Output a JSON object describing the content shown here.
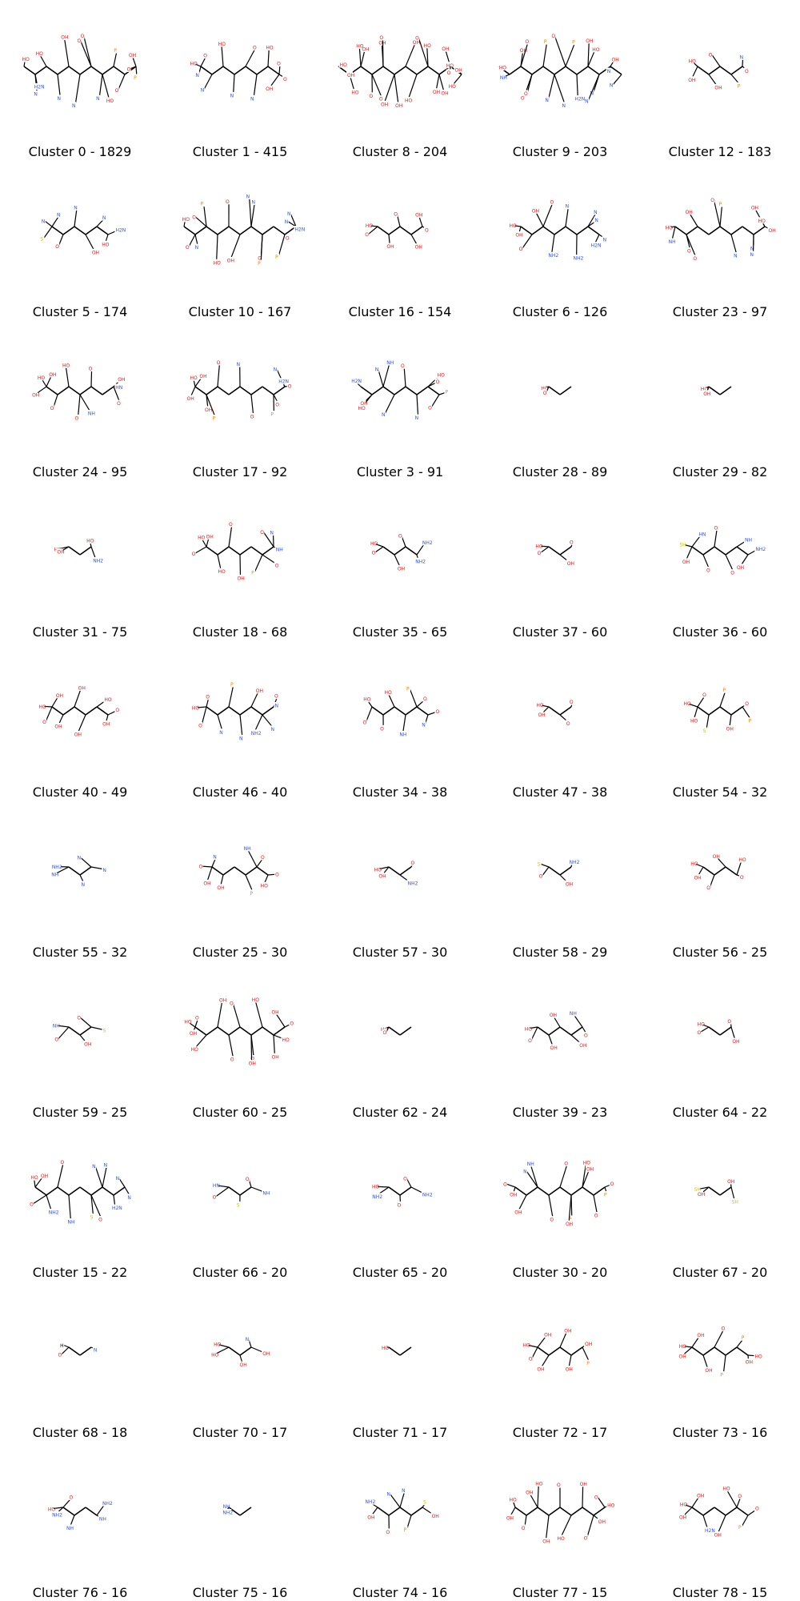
{
  "figure": {
    "clusters": [
      {
        "label": "Cluster 0 - 1829",
        "atoms": [
          "HO",
          "HO",
          "OH",
          "O",
          "O",
          "P",
          "OH",
          "O",
          "P",
          "O",
          "HO",
          "N",
          "N",
          "N",
          "N",
          "H2N"
        ]
      },
      {
        "label": "Cluster 1 - 415",
        "atoms": [
          "HO",
          "O",
          "HO",
          "O",
          "HO",
          "O",
          "O",
          "OH",
          "N",
          "N",
          "N",
          "N"
        ]
      },
      {
        "label": "Cluster 8 - 204",
        "atoms": [
          "HO",
          "OH",
          "HO",
          "OH",
          "O",
          "OH",
          "O",
          "HO",
          "OH",
          "HO",
          "OH",
          "O",
          "HO",
          "OH",
          "OH",
          "HO",
          "OH",
          "O",
          "OH",
          "O",
          "HO",
          "OH"
        ]
      },
      {
        "label": "Cluster 9 - 203",
        "atoms": [
          "HO",
          "OH",
          "O",
          "P",
          "O",
          "P",
          "OH",
          "HO",
          "OH",
          "N",
          "N",
          "N",
          "N",
          "H2N",
          "N",
          "N",
          "O",
          "O",
          "NH"
        ]
      },
      {
        "label": "Cluster 12 - 183",
        "atoms": [
          "HO",
          "O",
          "N",
          "O",
          "P",
          "OH",
          "OH"
        ]
      },
      {
        "label": "Cluster 5 - 174",
        "atoms": [
          "N",
          "N",
          "N",
          "N",
          "H2N",
          "HO",
          "OH",
          "O",
          "S"
        ]
      },
      {
        "label": "Cluster 10 - 167",
        "atoms": [
          "HO",
          "O",
          "P",
          "O",
          "N",
          "N",
          "N",
          "N",
          "H2N",
          "O",
          "P",
          "O",
          "P",
          "OH",
          "HO",
          "N",
          "O"
        ]
      },
      {
        "label": "Cluster 16 - 154",
        "atoms": [
          "HO",
          "O",
          "OH",
          "O",
          "OH",
          "OH",
          "O"
        ]
      },
      {
        "label": "Cluster 6 - 126",
        "atoms": [
          "HO",
          "OH",
          "O",
          "N",
          "N",
          "N",
          "N",
          "H2N",
          "NH2",
          "NH2",
          "O",
          "OH"
        ]
      },
      {
        "label": "Cluster 23 - 97",
        "atoms": [
          "HO",
          "OH",
          "O",
          "P",
          "OH",
          "HO",
          "OH",
          "N",
          "N",
          "N",
          "O",
          "O",
          "NH"
        ]
      },
      {
        "label": "Cluster 24 - 95",
        "atoms": [
          "HO",
          "OH",
          "HO",
          "O",
          "OH",
          "HN",
          "O",
          "NH",
          "O",
          "O",
          "OH"
        ]
      },
      {
        "label": "Cluster 17 - 92",
        "atoms": [
          "HO",
          "OH",
          "O",
          "N",
          "N",
          "H2N",
          "O",
          "O",
          "P",
          "O",
          "P",
          "OH",
          "OH"
        ]
      },
      {
        "label": "Cluster 3 - 91",
        "atoms": [
          "H2N",
          "N",
          "NH",
          "O",
          "HO",
          "O",
          "P",
          "O",
          "N",
          "N",
          "HO",
          "OH"
        ]
      },
      {
        "label": "Cluster 28 - 89",
        "atoms": [
          "HO",
          "O"
        ]
      },
      {
        "label": "Cluster 29 - 82",
        "atoms": [
          "HO",
          "OH"
        ]
      },
      {
        "label": "Cluster 31 - 75",
        "atoms": [
          "HO",
          "HO",
          "NH2",
          "OH"
        ]
      },
      {
        "label": "Cluster 18 - 68",
        "atoms": [
          "HO",
          "OH",
          "O",
          "O",
          "N",
          "NH",
          "O",
          "P",
          "OH",
          "HO",
          "O"
        ]
      },
      {
        "label": "Cluster 35 - 65",
        "atoms": [
          "HO",
          "O",
          "NH2",
          "NH2",
          "OH",
          "O"
        ]
      },
      {
        "label": "Cluster 37 - 60",
        "atoms": [
          "HO",
          "O",
          "OH",
          "O"
        ]
      },
      {
        "label": "Cluster 36 - 60",
        "atoms": [
          "SH",
          "HN",
          "O",
          "NH",
          "NH2",
          "OH",
          "O",
          "O",
          "OH"
        ]
      },
      {
        "label": "Cluster 40 - 49",
        "atoms": [
          "HO",
          "OH",
          "OH",
          "HO",
          "O",
          "OH",
          "OH",
          "OH",
          "O"
        ]
      },
      {
        "label": "Cluster 46 - 40",
        "atoms": [
          "HO",
          "O",
          "P",
          "OH",
          "O",
          "N",
          "N",
          "NH2",
          "N",
          "N",
          "O"
        ]
      },
      {
        "label": "Cluster 34 - 38",
        "atoms": [
          "HO",
          "HO",
          "P",
          "O",
          "O",
          "N",
          "NH",
          "O",
          "O"
        ]
      },
      {
        "label": "Cluster 47 - 38",
        "atoms": [
          "HO",
          "O",
          "O",
          "OH"
        ]
      },
      {
        "label": "Cluster 54 - 32",
        "atoms": [
          "HO",
          "O",
          "P",
          "O",
          "P",
          "OH",
          "S",
          "HO"
        ]
      },
      {
        "label": "Cluster 55 - 32",
        "atoms": [
          "NH2",
          "N",
          "N",
          "N",
          "NH"
        ]
      },
      {
        "label": "Cluster 25 - 30",
        "atoms": [
          "O",
          "N",
          "NH",
          "O",
          "O",
          "HO",
          "P",
          "OH",
          "OH"
        ]
      },
      {
        "label": "Cluster 57 - 30",
        "atoms": [
          "HO",
          "O",
          "NH2",
          "OH"
        ]
      },
      {
        "label": "Cluster 58 - 29",
        "atoms": [
          "S",
          "NH2",
          "OH",
          "O"
        ]
      },
      {
        "label": "Cluster 56 - 25",
        "atoms": [
          "HO",
          "OH",
          "HO",
          "O",
          "O",
          "OH"
        ]
      },
      {
        "label": "Cluster 59 - 25",
        "atoms": [
          "NH",
          "O",
          "S",
          "OH",
          "O"
        ]
      },
      {
        "label": "Cluster 60 - 25",
        "atoms": [
          "HO",
          "O",
          "OH",
          "O",
          "HO",
          "OH",
          "O",
          "HO",
          "OH",
          "O",
          "OH",
          "O",
          "HO",
          "OH"
        ]
      },
      {
        "label": "Cluster 62 - 24",
        "atoms": [
          "HO",
          "O"
        ]
      },
      {
        "label": "Cluster 39 - 23",
        "atoms": [
          "HO",
          "OH",
          "NH",
          "O",
          "OH",
          "OH",
          "O"
        ]
      },
      {
        "label": "Cluster 64 - 22",
        "atoms": [
          "HO",
          "O",
          "OH",
          "O"
        ]
      },
      {
        "label": "Cluster 15 - 22",
        "atoms": [
          "HO",
          "OH",
          "O",
          "N",
          "N",
          "N",
          "N",
          "H2N",
          "O",
          "S",
          "NH",
          "NH2",
          "O"
        ]
      },
      {
        "label": "Cluster 66 - 20",
        "atoms": [
          "HN",
          "O",
          "NH",
          "S",
          "O"
        ]
      },
      {
        "label": "Cluster 65 - 20",
        "atoms": [
          "HO",
          "O",
          "NH2",
          "O",
          "NH2"
        ]
      },
      {
        "label": "Cluster 30 - 20",
        "atoms": [
          "O",
          "N",
          "NH",
          "O",
          "HO",
          "OH",
          "O",
          "P",
          "O",
          "P",
          "OH",
          "O",
          "OH",
          "OH"
        ]
      },
      {
        "label": "Cluster 67 - 20",
        "atoms": [
          "SH",
          "OH",
          "SH",
          "OH"
        ]
      },
      {
        "label": "Cluster 68 - 18",
        "atoms": [
          "H",
          "N",
          "O"
        ]
      },
      {
        "label": "Cluster 70 - 17",
        "atoms": [
          "HO",
          "N",
          "OH",
          "OH",
          "HO"
        ]
      },
      {
        "label": "Cluster 71 - 17",
        "atoms": [
          "HO"
        ]
      },
      {
        "label": "Cluster 72 - 17",
        "atoms": [
          "HO",
          "OH",
          "OH",
          "OH",
          "P",
          "OH",
          "OH",
          "O"
        ]
      },
      {
        "label": "Cluster 73 - 16",
        "atoms": [
          "HO",
          "OH",
          "O",
          "P",
          "HO",
          "OH",
          "P",
          "OH",
          "OH"
        ]
      },
      {
        "label": "Cluster 76 - 16",
        "atoms": [
          "HO",
          "O",
          "NH2",
          "NH",
          "NH",
          "NH2"
        ]
      },
      {
        "label": "Cluster 75 - 16",
        "atoms": [
          "NH",
          "NH2"
        ]
      },
      {
        "label": "Cluster 74 - 16",
        "atoms": [
          "NH2",
          "N",
          "N",
          "S",
          "OH",
          "P",
          "O",
          "OH"
        ]
      },
      {
        "label": "Cluster 77 - 15",
        "atoms": [
          "HO",
          "OH",
          "HO",
          "O",
          "OH",
          "O",
          "HO",
          "OH",
          "O",
          "HO",
          "OH",
          "O",
          "OH"
        ]
      },
      {
        "label": "Cluster 78 - 15",
        "atoms": [
          "HO",
          "OH",
          "HO",
          "O",
          "O",
          "P",
          "OH",
          "H2N",
          "OH"
        ]
      }
    ],
    "colors": {
      "text": "#000000",
      "bond": "#000000",
      "oxygen": "#ff0d0d",
      "nitrogen": "#3050f8",
      "phosphorus": "#ff8000",
      "sulfur": "#c8c800"
    }
  }
}
